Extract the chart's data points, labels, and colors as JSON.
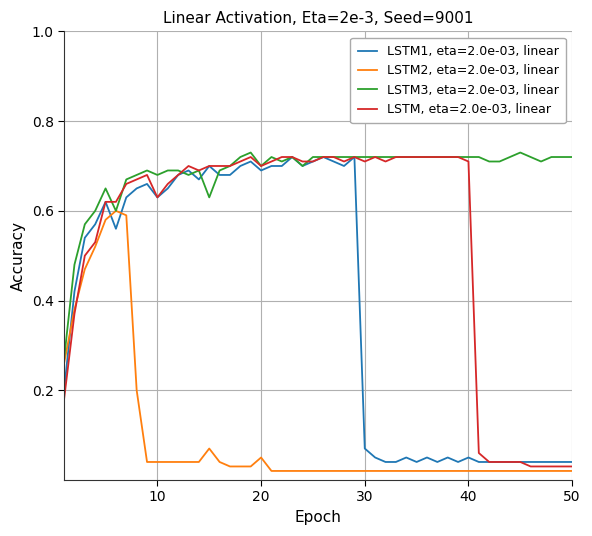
{
  "title": "Linear Activation, Eta=2e-3, Seed=9001",
  "xlabel": "Epoch",
  "ylabel": "Accuracy",
  "xlim": [
    1,
    50
  ],
  "ylim": [
    0.0,
    1.0
  ],
  "yticks": [
    0.2,
    0.4,
    0.6,
    0.8,
    1.0
  ],
  "xticks": [
    10,
    20,
    30,
    40,
    50
  ],
  "legend_labels": [
    "LSTM1, eta=2.0e-03, linear",
    "LSTM2, eta=2.0e-03, linear",
    "LSTM3, eta=2.0e-03, linear",
    "LSTM, eta=2.0e-03, linear"
  ],
  "colors": [
    "#1f77b4",
    "#ff7f0e",
    "#2ca02c",
    "#d62728"
  ],
  "lstm1": [
    0.2,
    0.42,
    0.54,
    0.57,
    0.62,
    0.56,
    0.63,
    0.65,
    0.66,
    0.63,
    0.65,
    0.68,
    0.69,
    0.67,
    0.7,
    0.68,
    0.68,
    0.7,
    0.71,
    0.69,
    0.7,
    0.7,
    0.72,
    0.7,
    0.71,
    0.72,
    0.71,
    0.7,
    0.72,
    0.07,
    0.05,
    0.04,
    0.04,
    0.05,
    0.04,
    0.05,
    0.04,
    0.05,
    0.04,
    0.05,
    0.04,
    0.04,
    0.04,
    0.04,
    0.04,
    0.04,
    0.04,
    0.04,
    0.04,
    0.04
  ],
  "lstm2": [
    0.26,
    0.38,
    0.47,
    0.52,
    0.58,
    0.6,
    0.59,
    0.2,
    0.04,
    0.04,
    0.04,
    0.04,
    0.04,
    0.04,
    0.07,
    0.04,
    0.03,
    0.03,
    0.03,
    0.05,
    0.02,
    0.02,
    0.02,
    0.02,
    0.02,
    0.02,
    0.02,
    0.02,
    0.02,
    0.02,
    0.02,
    0.02,
    0.02,
    0.02,
    0.02,
    0.02,
    0.02,
    0.02,
    0.02,
    0.02,
    0.02,
    0.02,
    0.02,
    0.02,
    0.02,
    0.02,
    0.02,
    0.02,
    0.02,
    0.02
  ],
  "lstm3": [
    0.27,
    0.48,
    0.57,
    0.6,
    0.65,
    0.6,
    0.67,
    0.68,
    0.69,
    0.68,
    0.69,
    0.69,
    0.68,
    0.69,
    0.63,
    0.69,
    0.7,
    0.72,
    0.73,
    0.7,
    0.72,
    0.71,
    0.72,
    0.7,
    0.72,
    0.72,
    0.72,
    0.72,
    0.72,
    0.72,
    0.72,
    0.72,
    0.72,
    0.72,
    0.72,
    0.72,
    0.72,
    0.72,
    0.72,
    0.72,
    0.72,
    0.71,
    0.71,
    0.72,
    0.73,
    0.72,
    0.71,
    0.72,
    0.72,
    0.72
  ],
  "lstm": [
    0.18,
    0.37,
    0.5,
    0.53,
    0.62,
    0.62,
    0.66,
    0.67,
    0.68,
    0.63,
    0.66,
    0.68,
    0.7,
    0.69,
    0.7,
    0.7,
    0.7,
    0.71,
    0.72,
    0.7,
    0.71,
    0.72,
    0.72,
    0.71,
    0.71,
    0.72,
    0.72,
    0.71,
    0.72,
    0.71,
    0.72,
    0.71,
    0.72,
    0.72,
    0.72,
    0.72,
    0.72,
    0.72,
    0.72,
    0.71,
    0.06,
    0.04,
    0.04,
    0.04,
    0.04,
    0.03,
    0.03,
    0.03,
    0.03,
    0.03
  ],
  "figsize": [
    5.92,
    5.36
  ],
  "dpi": 100,
  "grid_color": "#b0b0b0",
  "bg_color": "#ffffff",
  "fig_bg_color": "#ffffff"
}
